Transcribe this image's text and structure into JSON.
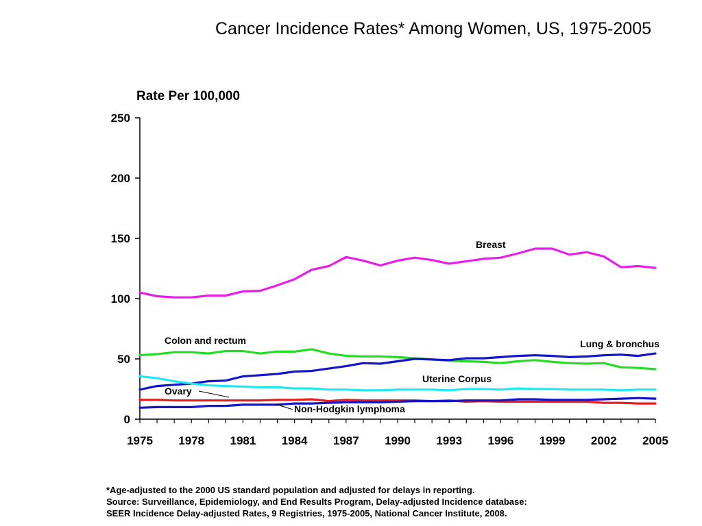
{
  "title": "Cancer Incidence Rates* Among Women, US, 1975-2005",
  "footnote": {
    "line1": "*Age-adjusted to the 2000 US standard population and adjusted for delays in reporting.",
    "line2": "Source: Surveillance, Epidemiology, and End Results Program, Delay-adjusted Incidence database:",
    "line3": "SEER Incidence Delay-adjusted Rates, 9 Registries, 1975-2005, National Cancer Institute, 2008."
  },
  "chart_data": {
    "type": "line",
    "title": "Cancer Incidence Rates* Among Women, US, 1975-2005",
    "ylabel": "Rate Per 100,000",
    "xlabel": "",
    "xlim": [
      1975,
      2005
    ],
    "ylim": [
      0,
      250
    ],
    "x_ticks": [
      1975,
      1978,
      1981,
      1984,
      1987,
      1990,
      1993,
      1996,
      1999,
      2002,
      2005
    ],
    "y_ticks": [
      0,
      50,
      100,
      150,
      200,
      250
    ],
    "grid": false,
    "legend": "inline labels",
    "x": [
      1975,
      1976,
      1977,
      1978,
      1979,
      1980,
      1981,
      1982,
      1983,
      1984,
      1985,
      1986,
      1987,
      1988,
      1989,
      1990,
      1991,
      1992,
      1993,
      1994,
      1995,
      1996,
      1997,
      1998,
      1999,
      2000,
      2001,
      2002,
      2003,
      2004,
      2005
    ],
    "series": [
      {
        "name": "Breast",
        "color": "#e81ee8",
        "values": [
          105,
          102,
          101,
          101,
          102.5,
          102.5,
          106,
          106.5,
          111,
          116,
          124,
          127,
          134.5,
          131.5,
          127.5,
          131.5,
          134,
          132,
          129,
          131,
          133,
          134,
          137.5,
          141.5,
          141.5,
          136.5,
          138.5,
          135,
          126,
          127,
          125.5
        ]
      },
      {
        "name": "Colon and rectum",
        "color": "#22dd22",
        "values": [
          53,
          54,
          55.5,
          55.5,
          54.5,
          56.5,
          56.5,
          54.5,
          56,
          56,
          58,
          54.5,
          52.5,
          52,
          52,
          51.5,
          50.5,
          49.5,
          48.5,
          48,
          47.5,
          46.5,
          48,
          49,
          47.5,
          46.5,
          46,
          46.5,
          43,
          42.5,
          41.5
        ]
      },
      {
        "name": "Lung & bronchus",
        "color": "#1414c8",
        "values": [
          24.5,
          27.5,
          28.5,
          29.5,
          31.5,
          32,
          35.5,
          36.5,
          37.5,
          39.5,
          40,
          42,
          44,
          46.5,
          46,
          48,
          50,
          49.5,
          49,
          50.5,
          50.5,
          51.5,
          52.5,
          53,
          52.5,
          51.5,
          52,
          53,
          53.5,
          52.5,
          54.5
        ]
      },
      {
        "name": "Uterine Corpus",
        "color": "#22e8f0",
        "values": [
          35.5,
          34,
          31.5,
          29.5,
          28,
          27.5,
          27,
          26.5,
          26.5,
          25.5,
          25.5,
          24.5,
          24.5,
          24,
          24,
          24.5,
          24.5,
          24.5,
          24,
          25,
          25,
          24.5,
          25.5,
          25,
          25,
          24.5,
          24.5,
          24.5,
          24,
          24.5,
          24.5
        ]
      },
      {
        "name": "Ovary",
        "color": "#e81c1c",
        "values": [
          16,
          16,
          15.5,
          15.5,
          15.5,
          15.5,
          15.5,
          15.5,
          16,
          16,
          16.5,
          15,
          16,
          15.5,
          15.5,
          15.5,
          15.5,
          15,
          15.5,
          14.5,
          15,
          14.5,
          14.5,
          14.5,
          14.5,
          14.5,
          14.5,
          13.5,
          13.5,
          13,
          13
        ]
      },
      {
        "name": "Non-Hodgkin lymphoma",
        "color": "#1414c8",
        "values": [
          9.5,
          10,
          10,
          10,
          11,
          11,
          12,
          12,
          12,
          13,
          13,
          13.5,
          14,
          14,
          14,
          14.5,
          15,
          15,
          15,
          15.5,
          15.5,
          15.5,
          16.5,
          16.5,
          16,
          16,
          16,
          16.5,
          17,
          17.5,
          17
        ]
      }
    ]
  }
}
